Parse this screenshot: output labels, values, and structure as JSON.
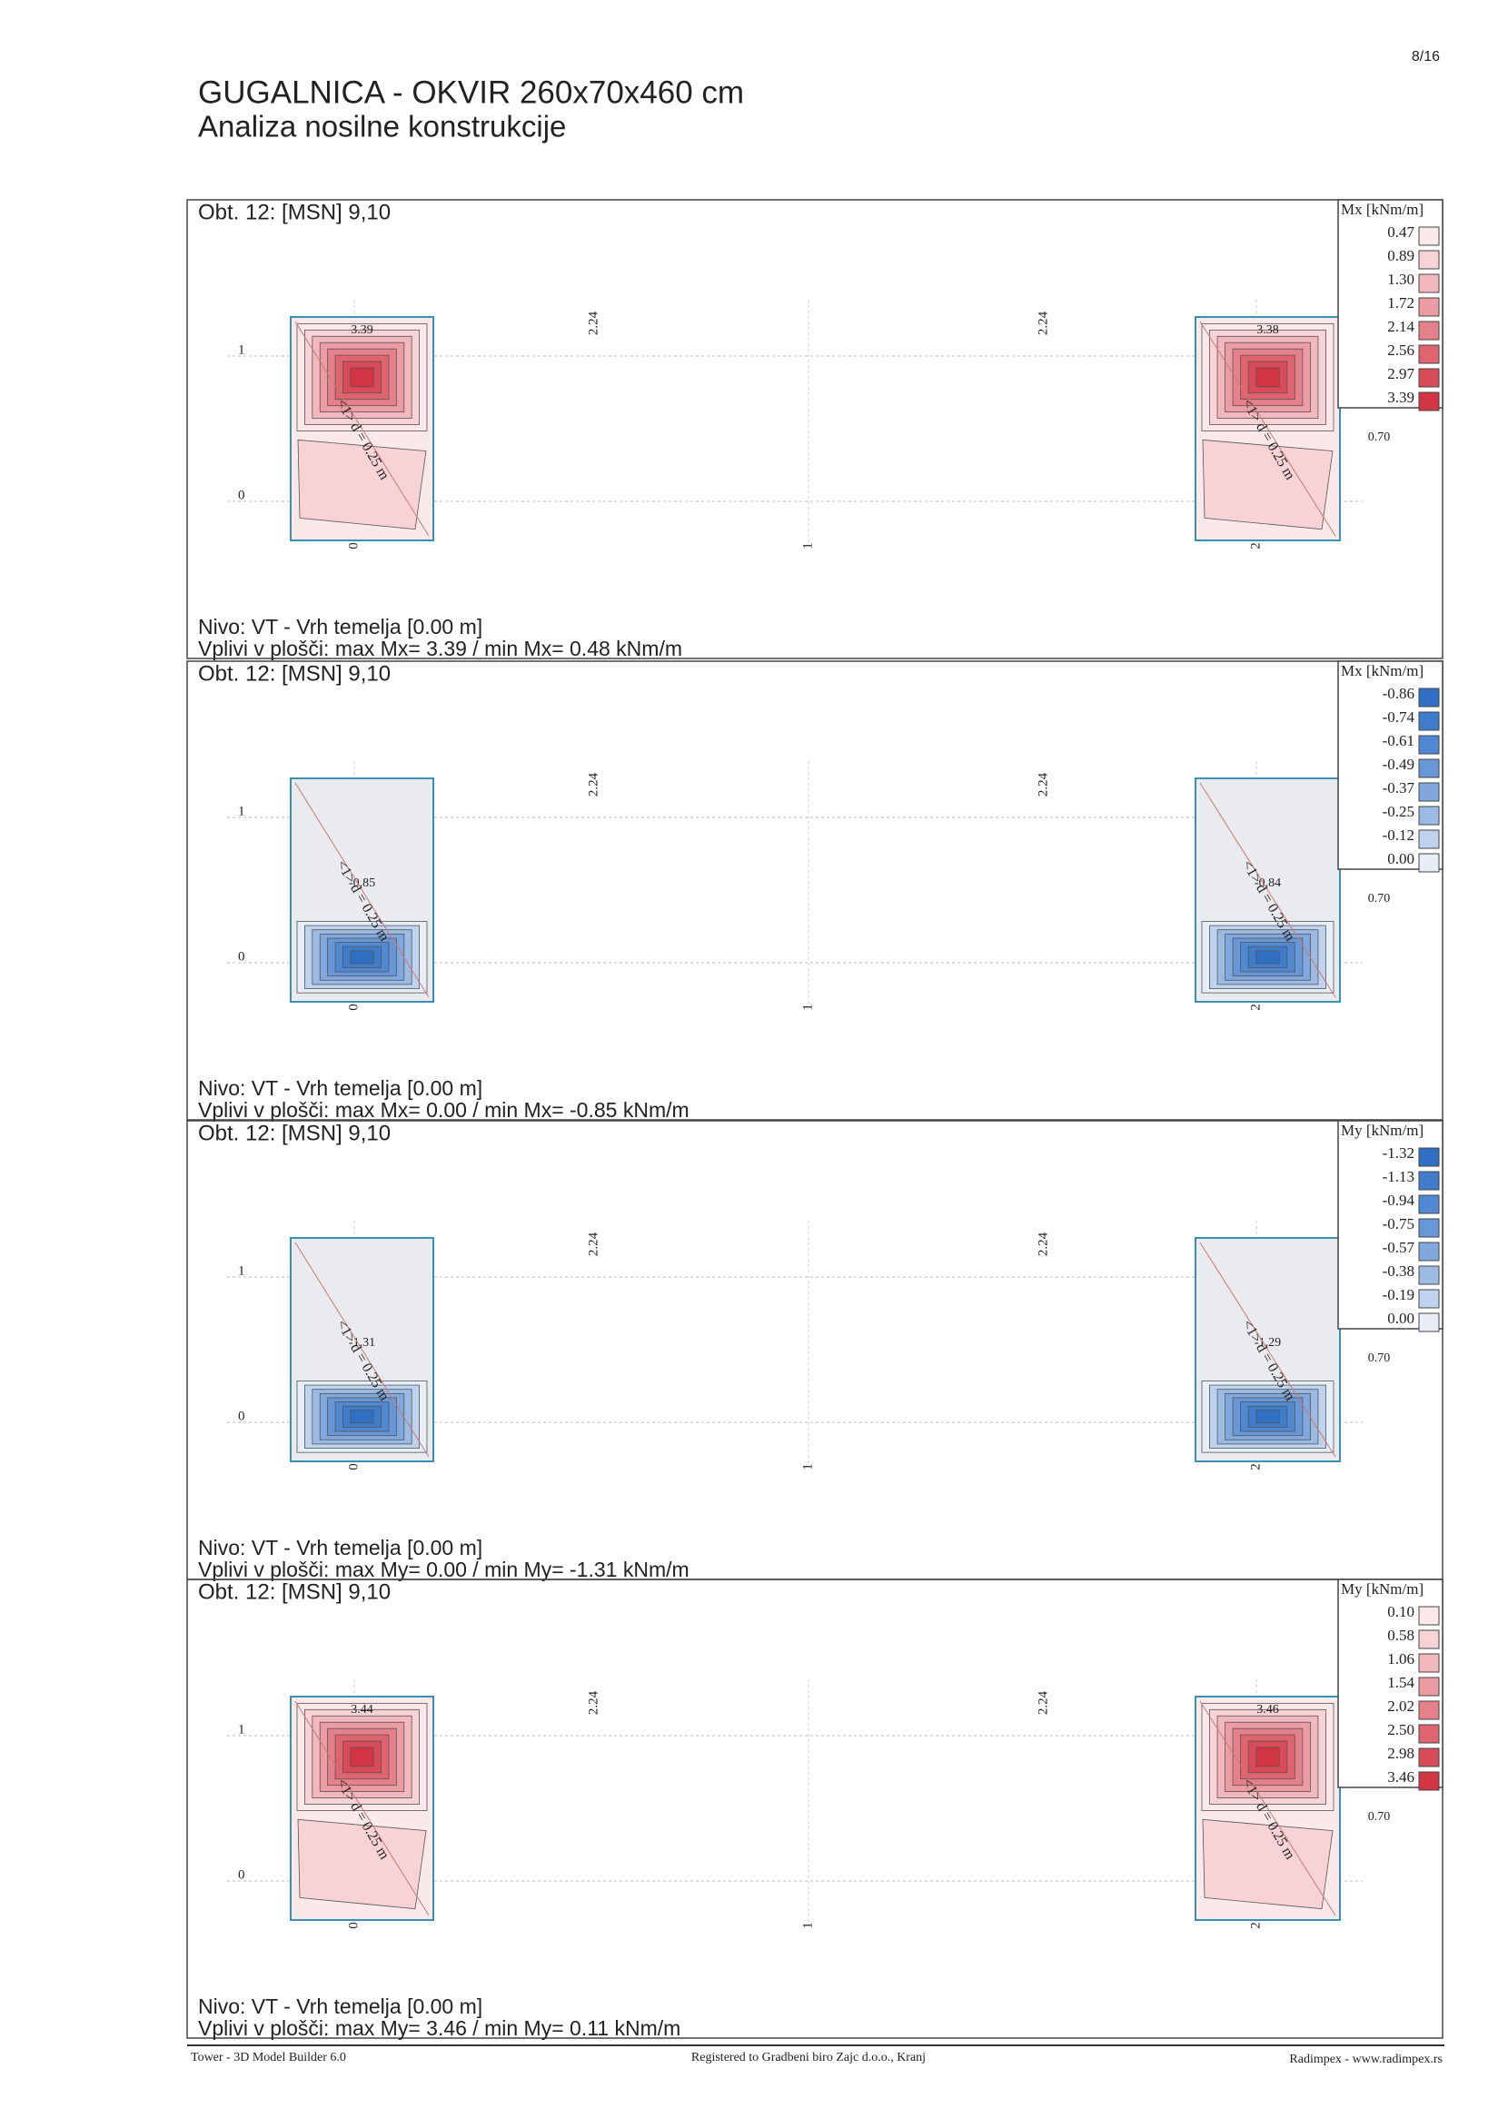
{
  "header": {
    "page": "8/16",
    "title": "GUGALNICA - OKVIR 260x70x460 cm",
    "subtitle": "Analiza nosilne konstrukcije"
  },
  "axes": {
    "rows": [
      "1",
      "0"
    ],
    "columns": [
      "0",
      "1",
      "2"
    ],
    "dims": [
      "2.24",
      "2.24"
    ],
    "side": "0.70",
    "annotation": "<1> d = 0.25 m"
  },
  "panels": [
    {
      "case": "Obt. 12: [MSN] 9,10",
      "legend_title": "Mx [kNm/m]",
      "legend": [
        {
          "value": "0.47",
          "color": "#fbe9ea"
        },
        {
          "value": "0.89",
          "color": "#f7d3d6"
        },
        {
          "value": "1.30",
          "color": "#f2b8bd"
        },
        {
          "value": "1.72",
          "color": "#ec9ca3"
        },
        {
          "value": "2.14",
          "color": "#e6808a"
        },
        {
          "value": "2.56",
          "color": "#df6470"
        },
        {
          "value": "2.97",
          "color": "#d94b59"
        },
        {
          "value": "3.39",
          "color": "#d33443"
        }
      ],
      "peaks": [
        "3.39",
        "3.38"
      ],
      "level": "Nivo: VT - Vrh temelja [0.00 m]",
      "summary": "Vplivi v plošči: max Mx= 3.39 / min Mx= 0.48 kNm/m"
    },
    {
      "case": "Obt. 12: [MSN] 9,10",
      "legend_title": "Mx [kNm/m]",
      "legend": [
        {
          "value": "-0.86",
          "color": "#2f6fc4"
        },
        {
          "value": "-0.74",
          "color": "#3f7ccb"
        },
        {
          "value": "-0.61",
          "color": "#5089d1"
        },
        {
          "value": "-0.49",
          "color": "#6797d7"
        },
        {
          "value": "-0.37",
          "color": "#80a8de"
        },
        {
          "value": "-0.25",
          "color": "#9bbbe5"
        },
        {
          "value": "-0.12",
          "color": "#bfd3ee"
        },
        {
          "value": "0.00",
          "color": "#e6eef8"
        }
      ],
      "peaks": [
        "-0.85",
        "-0.84"
      ],
      "level": "Nivo: VT - Vrh temelja [0.00 m]",
      "summary": "Vplivi v plošči: max Mx= 0.00 / min Mx= -0.85 kNm/m"
    },
    {
      "case": "Obt. 12: [MSN] 9,10",
      "legend_title": "My [kNm/m]",
      "legend": [
        {
          "value": "-1.32",
          "color": "#2f6fc4"
        },
        {
          "value": "-1.13",
          "color": "#3f7ccb"
        },
        {
          "value": "-0.94",
          "color": "#5089d1"
        },
        {
          "value": "-0.75",
          "color": "#6797d7"
        },
        {
          "value": "-0.57",
          "color": "#80a8de"
        },
        {
          "value": "-0.38",
          "color": "#9bbbe5"
        },
        {
          "value": "-0.19",
          "color": "#bfd3ee"
        },
        {
          "value": "0.00",
          "color": "#e6eef8"
        }
      ],
      "peaks": [
        "-1.31",
        "-1.29"
      ],
      "level": "Nivo: VT - Vrh temelja [0.00 m]",
      "summary": "Vplivi v plošči: max My= 0.00 / min My= -1.31 kNm/m"
    },
    {
      "case": "Obt. 12: [MSN] 9,10",
      "legend_title": "My [kNm/m]",
      "legend": [
        {
          "value": "0.10",
          "color": "#fbe9ea"
        },
        {
          "value": "0.58",
          "color": "#f7d3d6"
        },
        {
          "value": "1.06",
          "color": "#f2b8bd"
        },
        {
          "value": "1.54",
          "color": "#ec9ca3"
        },
        {
          "value": "2.02",
          "color": "#e6808a"
        },
        {
          "value": "2.50",
          "color": "#df6470"
        },
        {
          "value": "2.98",
          "color": "#d94b59"
        },
        {
          "value": "3.46",
          "color": "#d33443"
        }
      ],
      "peaks": [
        "3.44",
        "3.46"
      ],
      "level": "Nivo: VT - Vrh temelja [0.00 m]",
      "summary": "Vplivi v plošči: max My= 3.46 / min My= 0.11 kNm/m"
    }
  ],
  "footer": {
    "left": "Tower - 3D Model Builder 6.0",
    "center": "Registered to Gradbeni biro Zajc d.o.o., Kranj",
    "right": "Radimpex - www.radimpex.rs"
  }
}
